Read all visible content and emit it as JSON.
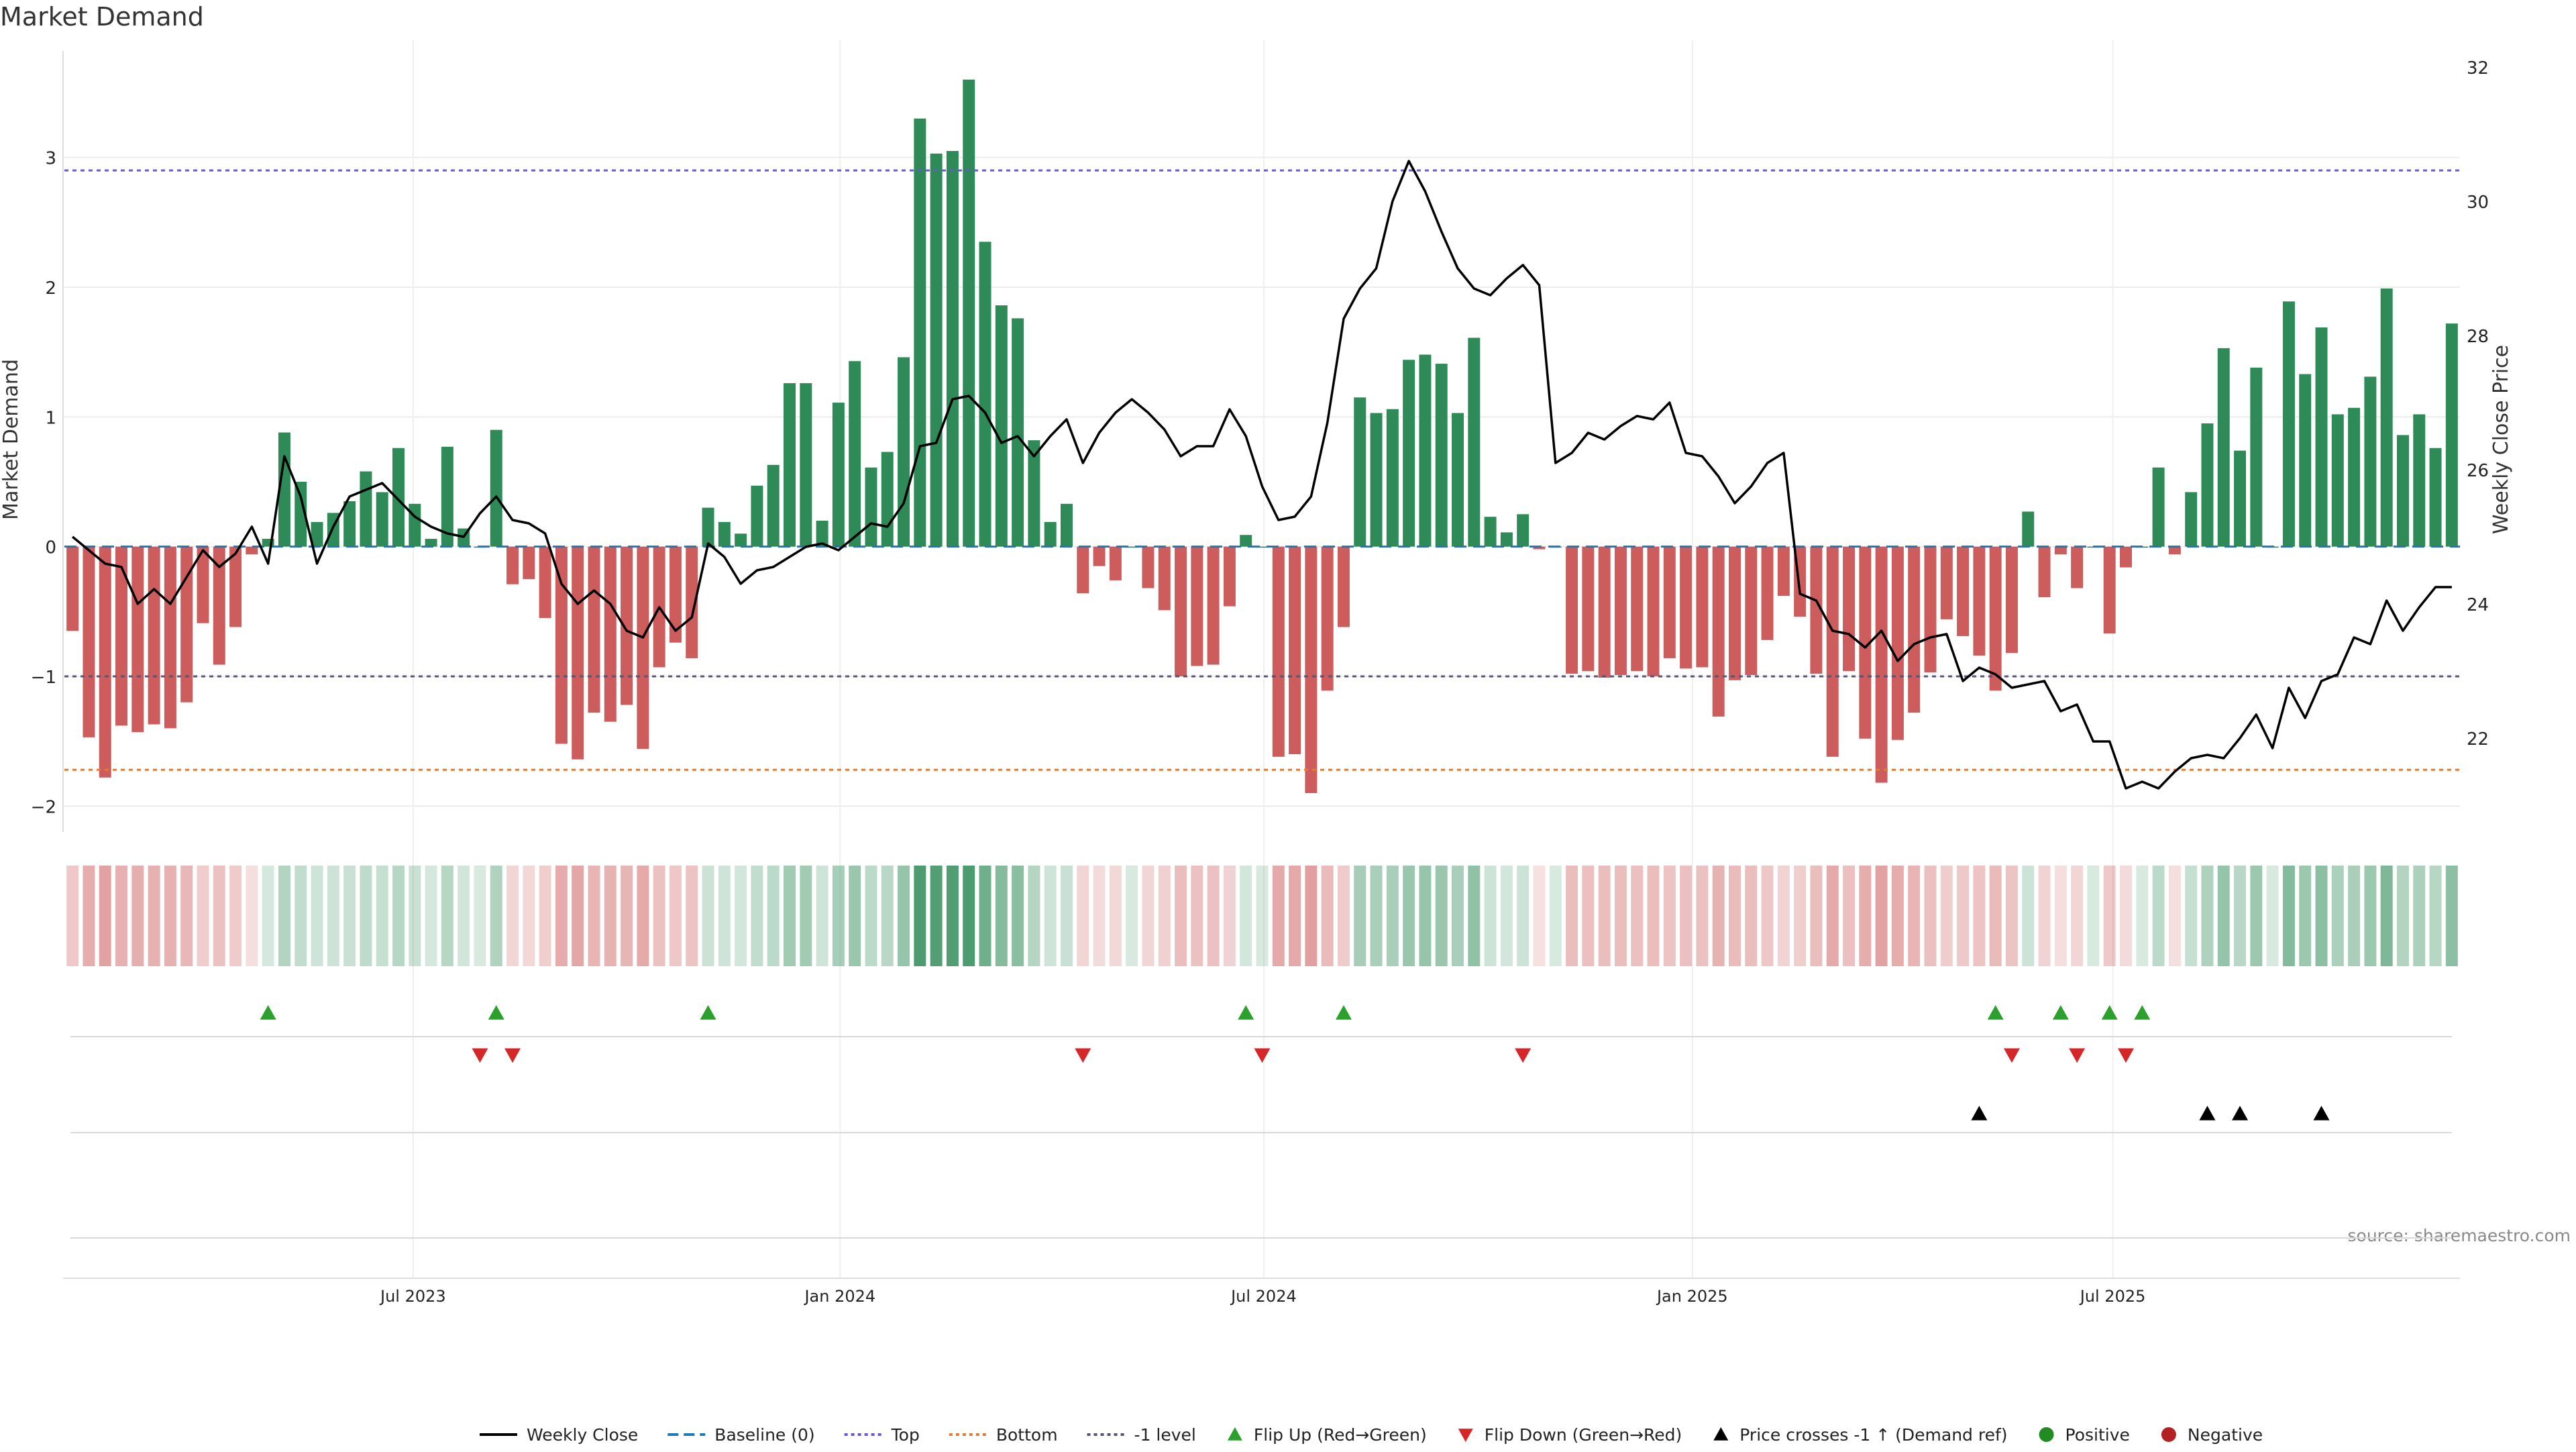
{
  "chart_data": {
    "type": "bar",
    "title": "Market Demand",
    "ylabel_left": "Market Demand",
    "ylabel_right": "Weekly Close Price",
    "ylim_left": [
      -2.2,
      3.8
    ],
    "ylim_right": [
      20.6,
      32.2
    ],
    "yticks_left": [
      -2,
      -1,
      0,
      1,
      2,
      3
    ],
    "ytick_labels_left": [
      "−2",
      "−1",
      "0",
      "1",
      "2",
      "3"
    ],
    "yticks_right": [
      22,
      24,
      26,
      28,
      30,
      32
    ],
    "ytick_labels_right": [
      "22",
      "24",
      "26",
      "28",
      "30",
      "32"
    ],
    "x_start": "2023-01-05",
    "week_step_days": 7,
    "xticks": [
      {
        "label": "Jul 2023",
        "index": 21.4
      },
      {
        "label": "Jan 2024",
        "index": 47.6
      },
      {
        "label": "Jul 2024",
        "index": 73.6
      },
      {
        "label": "Jan 2025",
        "index": 99.9
      },
      {
        "label": "Jul 2025",
        "index": 125.7
      }
    ],
    "reference_lines": {
      "top": 2.9,
      "bottom": -1.72,
      "minus_one": -1.0,
      "baseline": 0
    },
    "colors": {
      "positive_bar": "#2e8b57",
      "negative_bar": "#cd5c5c",
      "weekly_close": "#000000",
      "baseline": "#1f77b4",
      "top": "#6a5acd",
      "bottom": "#e07b39",
      "minus_one": "#555577",
      "flip_up": "#2ca02c",
      "flip_down": "#d62728",
      "price_cross": "#000000",
      "positive_dot": "#228b22",
      "negative_dot": "#b22222"
    },
    "series": [
      {
        "name": "Market Demand",
        "values": [
          -0.65,
          -1.47,
          -1.78,
          -1.38,
          -1.43,
          -1.37,
          -1.4,
          -1.2,
          -0.59,
          -0.91,
          -0.62,
          -0.06,
          0.06,
          0.88,
          0.5,
          0.19,
          0.26,
          0.35,
          0.58,
          0.42,
          0.76,
          0.33,
          0.06,
          0.77,
          0.14,
          0.0,
          0.9,
          -0.29,
          -0.25,
          -0.55,
          -1.52,
          -1.64,
          -1.28,
          -1.35,
          -1.22,
          -1.56,
          -0.93,
          -0.74,
          -0.86,
          0.3,
          0.19,
          0.1,
          0.47,
          0.63,
          1.26,
          1.26,
          0.2,
          1.11,
          1.43,
          0.61,
          0.73,
          1.46,
          3.3,
          3.03,
          3.05,
          3.6,
          2.35,
          1.86,
          1.76,
          0.82,
          0.19,
          0.33,
          -0.36,
          -0.15,
          -0.26,
          0.0,
          -0.32,
          -0.49,
          -1.0,
          -0.92,
          -0.91,
          -0.46,
          0.09,
          0.0,
          -1.62,
          -1.6,
          -1.9,
          -1.11,
          -0.62,
          1.15,
          1.03,
          1.06,
          1.44,
          1.48,
          1.41,
          1.03,
          1.61,
          0.23,
          0.11,
          0.25,
          -0.02,
          0.0,
          -0.98,
          -0.96,
          -1.01,
          -0.99,
          -0.96,
          -1.0,
          -0.86,
          -0.94,
          -0.93,
          -1.31,
          -1.03,
          -0.99,
          -0.72,
          -0.38,
          -0.54,
          -0.98,
          -1.62,
          -0.96,
          -1.48,
          -1.82,
          -1.49,
          -1.28,
          -0.97,
          -0.56,
          -0.69,
          -0.84,
          -1.11,
          -0.82,
          0.27,
          -0.39,
          -0.06,
          -0.32,
          0.0,
          -0.67,
          -0.16,
          0.0,
          0.61,
          -0.06,
          0.42,
          0.95,
          1.53,
          0.74,
          1.38,
          0.0,
          1.89,
          1.33,
          1.69,
          1.02,
          1.07,
          1.31,
          1.99,
          0.86,
          1.02,
          0.76,
          1.72
        ]
      },
      {
        "name": "Weekly Close",
        "values": [
          25.0,
          24.8,
          24.6,
          24.55,
          24.0,
          24.22,
          24.0,
          24.4,
          24.8,
          24.55,
          24.75,
          25.15,
          24.6,
          26.2,
          25.6,
          24.6,
          25.15,
          25.6,
          25.7,
          25.8,
          25.55,
          25.3,
          25.15,
          25.05,
          25.0,
          25.35,
          25.6,
          25.25,
          25.2,
          25.05,
          24.3,
          24.0,
          24.2,
          24.0,
          23.6,
          23.5,
          23.95,
          23.6,
          23.8,
          24.9,
          24.7,
          24.3,
          24.5,
          24.55,
          24.7,
          24.85,
          24.9,
          24.8,
          25.0,
          25.2,
          25.15,
          25.5,
          26.35,
          26.4,
          27.05,
          27.1,
          26.85,
          26.4,
          26.5,
          26.2,
          26.5,
          26.75,
          26.1,
          26.55,
          26.85,
          27.05,
          26.85,
          26.6,
          26.2,
          26.35,
          26.35,
          26.9,
          26.5,
          25.75,
          25.25,
          25.3,
          25.6,
          26.7,
          28.25,
          28.7,
          29.0,
          30.0,
          30.6,
          30.15,
          29.55,
          29.0,
          28.7,
          28.6,
          28.85,
          29.05,
          28.75,
          26.1,
          26.25,
          26.55,
          26.45,
          26.65,
          26.8,
          26.75,
          27.0,
          26.25,
          26.2,
          25.9,
          25.5,
          25.75,
          26.1,
          26.25,
          24.15,
          24.05,
          23.6,
          23.55,
          23.35,
          23.6,
          23.15,
          23.4,
          23.5,
          23.55,
          22.85,
          23.05,
          22.95,
          22.75,
          22.8,
          22.85,
          22.4,
          22.5,
          21.95,
          21.95,
          21.25,
          21.35,
          21.25,
          21.5,
          21.7,
          21.75,
          21.7,
          22.0,
          22.35,
          21.85,
          22.75,
          22.3,
          22.85,
          22.95,
          23.5,
          23.4,
          24.05,
          23.6,
          23.95,
          24.25,
          24.25
        ]
      }
    ],
    "flip_up_indices": [
      12,
      26,
      39,
      72,
      78,
      118,
      122,
      125,
      127
    ],
    "flip_down_indices": [
      25,
      27,
      62,
      73,
      89,
      119,
      123,
      126
    ],
    "price_cross_indices": [
      117,
      131,
      133,
      138
    ],
    "legend": [
      {
        "label": "Weekly Close",
        "kind": "line-solid",
        "color": "#000000"
      },
      {
        "label": "Baseline (0)",
        "kind": "line-dashed",
        "color": "#1f77b4"
      },
      {
        "label": "Top",
        "kind": "line-dotted",
        "color": "#6a5acd"
      },
      {
        "label": "Bottom",
        "kind": "line-dotted",
        "color": "#e07b39"
      },
      {
        "label": "-1 level",
        "kind": "line-dotted",
        "color": "#555577"
      },
      {
        "label": "Flip Up (Red→Green)",
        "kind": "triangle-up",
        "color": "#2ca02c"
      },
      {
        "label": "Flip Down (Green→Red)",
        "kind": "triangle-down",
        "color": "#d62728"
      },
      {
        "label": "Price crosses -1 ↑ (Demand ref)",
        "kind": "triangle-up",
        "color": "#000000"
      },
      {
        "label": "Positive",
        "kind": "dot",
        "color": "#228b22"
      },
      {
        "label": "Negative",
        "kind": "dot",
        "color": "#b22222"
      }
    ],
    "source": "source: sharemaestro.com",
    "legend_position": "bottom-center",
    "grid": true
  }
}
